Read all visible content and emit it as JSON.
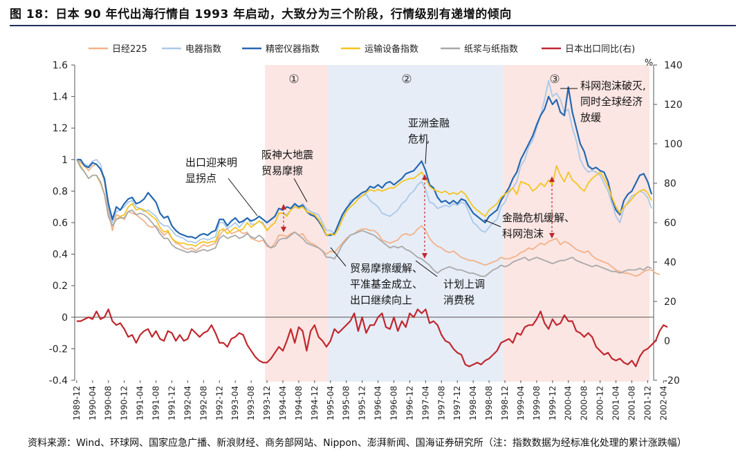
{
  "figure": {
    "title": "图 18：日本 90 年代出海行情自 1993 年启动，大致分为三个阶段，行情级别有递增的倾向",
    "source": "资料来源：Wind、环球网、国家应急广播、新浪财经、商务部网站、Nippon、澎湃新闻、国海证券研究所（注：指数数据为经标准化处理的累计涨跌幅）"
  },
  "chart_data": {
    "type": "line",
    "title": "",
    "left_axis": {
      "ticks": [
        -0.4,
        -0.2,
        0,
        0.2,
        0.4,
        0.6,
        0.8,
        1,
        1.2,
        1.4,
        1.6
      ],
      "labels": [
        "-0.4",
        "-0.2",
        "0",
        "0.2",
        "0.4",
        "0.6",
        "0.8",
        "1",
        "1.2",
        "1.4",
        "1.6"
      ],
      "ylim": [
        -0.4,
        1.6
      ]
    },
    "right_axis": {
      "unit": "%",
      "ticks": [
        -20,
        0,
        20,
        40,
        60,
        80,
        100,
        120,
        140
      ],
      "labels": [
        "-20",
        "0",
        "20",
        "40",
        "60",
        "80",
        "100",
        "120",
        "140"
      ],
      "ylim": [
        -20,
        140
      ]
    },
    "x_labels": [
      "1989-12",
      "1990-04",
      "1990-08",
      "1990-12",
      "1991-04",
      "1991-08",
      "1991-12",
      "1992-04",
      "1992-08",
      "1992-12",
      "1993-04",
      "1993-08",
      "1993-12",
      "1994-04",
      "1994-08",
      "1994-12",
      "1995-04",
      "1995-08",
      "1995-12",
      "1996-04",
      "1996-08",
      "1996-12",
      "1997-04",
      "1997-08",
      "1997-12",
      "1998-04",
      "1998-08",
      "1998-12",
      "1999-04",
      "1999-08",
      "1999-12",
      "2000-04",
      "2000-08",
      "2000-12",
      "2001-04",
      "2001-08",
      "2001-12",
      "2002-04"
    ],
    "phases": [
      {
        "label": "①",
        "start": 48,
        "end": 64,
        "color": "#fbe6e3"
      },
      {
        "label": "②",
        "start": 64,
        "end": 108,
        "color": "#e6edf7"
      },
      {
        "label": "③",
        "start": 108,
        "end": 145,
        "color": "#fbe6e3"
      }
    ],
    "series": [
      {
        "name": "日经225",
        "color": "#f2b189",
        "axis": "left",
        "width": 1.8,
        "values": [
          1.0,
          0.98,
          0.96,
          0.93,
          0.96,
          0.97,
          0.94,
          0.86,
          0.68,
          0.55,
          0.65,
          0.64,
          0.62,
          0.67,
          0.66,
          0.65,
          0.63,
          0.61,
          0.58,
          0.57,
          0.58,
          0.55,
          0.52,
          0.54,
          0.5,
          0.47,
          0.46,
          0.44,
          0.43,
          0.44,
          0.42,
          0.44,
          0.46,
          0.45,
          0.46,
          0.47,
          0.52,
          0.55,
          0.56,
          0.53,
          0.54,
          0.55,
          0.53,
          0.54,
          0.5,
          0.49,
          0.48,
          0.49,
          0.45,
          0.44,
          0.47,
          0.52,
          0.52,
          0.51,
          0.53,
          0.54,
          0.52,
          0.53,
          0.49,
          0.47,
          0.46,
          0.44,
          0.42,
          0.4,
          0.42,
          0.41,
          0.44,
          0.47,
          0.5,
          0.52,
          0.53,
          0.55,
          0.56,
          0.56,
          0.55,
          0.55,
          0.53,
          0.49,
          0.48,
          0.47,
          0.48,
          0.49,
          0.52,
          0.53,
          0.52,
          0.53,
          0.56,
          0.58,
          0.55,
          0.5,
          0.47,
          0.45,
          0.44,
          0.42,
          0.41,
          0.42,
          0.4,
          0.38,
          0.37,
          0.36,
          0.36,
          0.35,
          0.34,
          0.33,
          0.34,
          0.35,
          0.36,
          0.38,
          0.37,
          0.37,
          0.38,
          0.39,
          0.41,
          0.42,
          0.44,
          0.43,
          0.45,
          0.47,
          0.46,
          0.48,
          0.49,
          0.5,
          0.46,
          0.48,
          0.47,
          0.45,
          0.43,
          0.42,
          0.41,
          0.42,
          0.39,
          0.37,
          0.36,
          0.35,
          0.34,
          0.32,
          0.3,
          0.29,
          0.28,
          0.28,
          0.27,
          0.26,
          0.27,
          0.29,
          0.3,
          0.3,
          0.28,
          0.27
        ]
      },
      {
        "name": "电器指数",
        "color": "#a9c8e8",
        "axis": "left",
        "width": 1.8,
        "values": [
          1.0,
          0.99,
          0.97,
          0.96,
          0.99,
          1.0,
          0.97,
          0.87,
          0.7,
          0.6,
          0.67,
          0.68,
          0.7,
          0.73,
          0.74,
          0.7,
          0.69,
          0.67,
          0.68,
          0.66,
          0.64,
          0.6,
          0.58,
          0.58,
          0.55,
          0.52,
          0.51,
          0.5,
          0.48,
          0.48,
          0.47,
          0.49,
          0.5,
          0.49,
          0.5,
          0.51,
          0.6,
          0.6,
          0.56,
          0.58,
          0.6,
          0.57,
          0.6,
          0.63,
          0.59,
          0.59,
          0.61,
          0.6,
          0.55,
          0.58,
          0.6,
          0.66,
          0.66,
          0.65,
          0.68,
          0.71,
          0.7,
          0.72,
          0.69,
          0.67,
          0.66,
          0.65,
          0.6,
          0.55,
          0.55,
          0.53,
          0.58,
          0.64,
          0.68,
          0.74,
          0.75,
          0.76,
          0.77,
          0.78,
          0.74,
          0.72,
          0.7,
          0.66,
          0.65,
          0.64,
          0.66,
          0.68,
          0.72,
          0.74,
          0.78,
          0.8,
          0.84,
          0.86,
          0.81,
          0.73,
          0.72,
          0.69,
          0.7,
          0.71,
          0.7,
          0.72,
          0.71,
          0.73,
          0.72,
          0.66,
          0.6,
          0.58,
          0.55,
          0.54,
          0.57,
          0.6,
          0.62,
          0.7,
          0.73,
          0.79,
          0.82,
          0.86,
          0.96,
          1.0,
          1.08,
          1.12,
          1.2,
          1.28,
          1.38,
          1.5,
          1.4,
          1.42,
          1.38,
          1.3,
          1.32,
          1.2,
          1.12,
          1.0,
          0.95,
          0.92,
          0.93,
          0.92,
          0.9,
          0.85,
          0.8,
          0.72,
          0.64,
          0.6,
          0.69,
          0.73,
          0.77,
          0.78,
          0.8,
          0.79,
          0.76,
          0.69
        ]
      },
      {
        "name": "精密仪器指数",
        "color": "#2467b1",
        "axis": "left",
        "width": 2.2,
        "values": [
          1.0,
          1.0,
          0.96,
          0.95,
          0.98,
          0.97,
          0.94,
          0.88,
          0.72,
          0.62,
          0.7,
          0.68,
          0.72,
          0.75,
          0.76,
          0.72,
          0.73,
          0.75,
          0.79,
          0.76,
          0.73,
          0.66,
          0.63,
          0.64,
          0.58,
          0.55,
          0.53,
          0.52,
          0.51,
          0.51,
          0.5,
          0.52,
          0.53,
          0.52,
          0.54,
          0.55,
          0.62,
          0.62,
          0.58,
          0.61,
          0.63,
          0.6,
          0.61,
          0.63,
          0.61,
          0.62,
          0.64,
          0.62,
          0.6,
          0.62,
          0.64,
          0.69,
          0.68,
          0.7,
          0.69,
          0.72,
          0.7,
          0.71,
          0.67,
          0.65,
          0.64,
          0.61,
          0.57,
          0.52,
          0.52,
          0.53,
          0.59,
          0.65,
          0.69,
          0.72,
          0.75,
          0.77,
          0.79,
          0.8,
          0.83,
          0.82,
          0.84,
          0.82,
          0.85,
          0.86,
          0.84,
          0.86,
          0.88,
          0.91,
          0.92,
          0.93,
          0.96,
          0.99,
          0.93,
          0.84,
          0.82,
          0.76,
          0.73,
          0.74,
          0.72,
          0.74,
          0.72,
          0.75,
          0.74,
          0.7,
          0.66,
          0.64,
          0.62,
          0.6,
          0.64,
          0.66,
          0.68,
          0.74,
          0.78,
          0.82,
          0.88,
          0.92,
          1.0,
          1.05,
          1.1,
          1.15,
          1.22,
          1.28,
          1.32,
          1.4,
          1.35,
          1.38,
          1.3,
          1.28,
          1.46,
          1.3,
          1.2,
          1.1,
          1.05,
          0.96,
          0.94,
          0.95,
          0.93,
          0.92,
          0.86,
          0.75,
          0.68,
          0.65,
          0.74,
          0.78,
          0.8,
          0.85,
          0.9,
          0.91,
          0.86,
          0.78
        ]
      },
      {
        "name": "运输设备指数",
        "color": "#f4c41f",
        "axis": "left",
        "width": 1.8,
        "values": [
          1.0,
          0.96,
          0.92,
          0.88,
          0.9,
          0.9,
          0.85,
          0.78,
          0.64,
          0.58,
          0.62,
          0.64,
          0.65,
          0.7,
          0.72,
          0.68,
          0.69,
          0.68,
          0.66,
          0.64,
          0.62,
          0.57,
          0.54,
          0.55,
          0.5,
          0.48,
          0.47,
          0.47,
          0.46,
          0.46,
          0.45,
          0.47,
          0.48,
          0.47,
          0.48,
          0.48,
          0.55,
          0.56,
          0.53,
          0.55,
          0.57,
          0.55,
          0.56,
          0.6,
          0.57,
          0.59,
          0.61,
          0.59,
          0.55,
          0.58,
          0.6,
          0.66,
          0.66,
          0.64,
          0.68,
          0.7,
          0.69,
          0.7,
          0.67,
          0.66,
          0.65,
          0.62,
          0.58,
          0.52,
          0.53,
          0.52,
          0.56,
          0.62,
          0.67,
          0.7,
          0.72,
          0.75,
          0.77,
          0.79,
          0.81,
          0.8,
          0.81,
          0.8,
          0.81,
          0.82,
          0.82,
          0.84,
          0.86,
          0.87,
          0.88,
          0.88,
          0.9,
          0.92,
          0.88,
          0.83,
          0.81,
          0.8,
          0.79,
          0.8,
          0.78,
          0.79,
          0.78,
          0.8,
          0.78,
          0.74,
          0.7,
          0.68,
          0.66,
          0.64,
          0.68,
          0.7,
          0.72,
          0.76,
          0.78,
          0.8,
          0.82,
          0.78,
          0.86,
          0.85,
          0.84,
          0.8,
          0.82,
          0.85,
          0.83,
          0.87,
          0.84,
          0.96,
          0.9,
          0.86,
          0.92,
          0.87,
          0.85,
          0.82,
          0.8,
          0.85,
          0.88,
          0.9,
          0.92,
          0.88,
          0.83,
          0.76,
          0.7,
          0.66,
          0.7,
          0.72,
          0.75,
          0.78,
          0.8,
          0.81,
          0.79,
          0.74
        ]
      },
      {
        "name": "纸浆与纸指数",
        "color": "#a8a8a8",
        "axis": "left",
        "width": 1.8,
        "values": [
          1.0,
          0.95,
          0.92,
          0.88,
          0.9,
          0.9,
          0.86,
          0.78,
          0.64,
          0.58,
          0.62,
          0.63,
          0.63,
          0.67,
          0.68,
          0.65,
          0.66,
          0.65,
          0.63,
          0.6,
          0.57,
          0.53,
          0.5,
          0.5,
          0.46,
          0.44,
          0.43,
          0.42,
          0.41,
          0.42,
          0.41,
          0.42,
          0.43,
          0.42,
          0.43,
          0.44,
          0.5,
          0.52,
          0.5,
          0.51,
          0.52,
          0.5,
          0.51,
          0.53,
          0.51,
          0.5,
          0.52,
          0.5,
          0.46,
          0.44,
          0.45,
          0.49,
          0.5,
          0.5,
          0.52,
          0.54,
          0.52,
          0.5,
          0.47,
          0.46,
          0.45,
          0.44,
          0.42,
          0.38,
          0.38,
          0.37,
          0.41,
          0.46,
          0.49,
          0.52,
          0.53,
          0.54,
          0.55,
          0.54,
          0.53,
          0.52,
          0.5,
          0.48,
          0.46,
          0.44,
          0.45,
          0.44,
          0.45,
          0.43,
          0.42,
          0.4,
          0.38,
          0.37,
          0.35,
          0.33,
          0.3,
          0.28,
          0.3,
          0.31,
          0.32,
          0.31,
          0.3,
          0.3,
          0.29,
          0.28,
          0.28,
          0.27,
          0.26,
          0.26,
          0.28,
          0.3,
          0.31,
          0.33,
          0.32,
          0.33,
          0.35,
          0.36,
          0.37,
          0.38,
          0.36,
          0.37,
          0.38,
          0.37,
          0.36,
          0.35,
          0.34,
          0.35,
          0.36,
          0.36,
          0.37,
          0.38,
          0.36,
          0.35,
          0.34,
          0.33,
          0.32,
          0.33,
          0.32,
          0.31,
          0.3,
          0.29,
          0.29,
          0.28,
          0.29,
          0.3,
          0.3,
          0.3,
          0.31,
          0.3,
          0.32,
          0.31
        ]
      },
      {
        "name": "日本出口同比(右)",
        "color": "#c0262d",
        "axis": "right",
        "width": 2.2,
        "values": [
          10,
          10,
          11,
          12,
          11,
          15,
          11,
          12,
          16,
          10,
          8,
          9,
          6,
          2,
          3,
          -1,
          3,
          5,
          6,
          2,
          5,
          1,
          0,
          5,
          4,
          0,
          3,
          0,
          1,
          6,
          4,
          2,
          4,
          5,
          8,
          4,
          -1,
          -1,
          -3,
          1,
          2,
          4,
          3,
          -2,
          -5,
          -8,
          -10,
          -11,
          -11,
          -9,
          -6,
          -3,
          -5,
          0,
          6,
          -1,
          7,
          5,
          -5,
          5,
          8,
          2,
          0,
          -3,
          0,
          6,
          4,
          6,
          8,
          10,
          14,
          5,
          12,
          4,
          8,
          8,
          12,
          14,
          7,
          6,
          12,
          5,
          10,
          7,
          14,
          12,
          16,
          14,
          16,
          9,
          10,
          8,
          3,
          0,
          -1,
          -4,
          -6,
          -7,
          -12,
          -13,
          -12,
          -11,
          -12,
          -10,
          -9,
          -7,
          -5,
          -1,
          0,
          1,
          -1,
          4,
          3,
          7,
          8,
          8,
          11,
          15,
          9,
          6,
          11,
          8,
          9,
          13,
          10,
          10,
          5,
          4,
          2,
          4,
          2,
          -3,
          -5,
          -7,
          -6,
          -9,
          -10,
          -9,
          -11,
          -12,
          -10,
          -13,
          -8,
          -5,
          -4,
          -2,
          0,
          5,
          8,
          7
        ]
      }
    ],
    "annotations": [
      {
        "lines": [
          "出口迎来明",
          "显拐点"
        ]
      },
      {
        "lines": [
          "阪神大地震",
          "贸易摩擦"
        ]
      },
      {
        "lines": [
          "亚洲金融",
          "危机"
        ]
      },
      {
        "lines": [
          "科网泡沫破灭,",
          "同时全球经济",
          "放缓"
        ]
      },
      {
        "lines": [
          "金融危机缓解、",
          "科网泡沫"
        ]
      },
      {
        "lines": [
          "贸易摩擦缓解、",
          "平准基金成立、",
          "出口继续向上"
        ]
      },
      {
        "lines": [
          "计划上调",
          "消费税"
        ]
      }
    ]
  }
}
